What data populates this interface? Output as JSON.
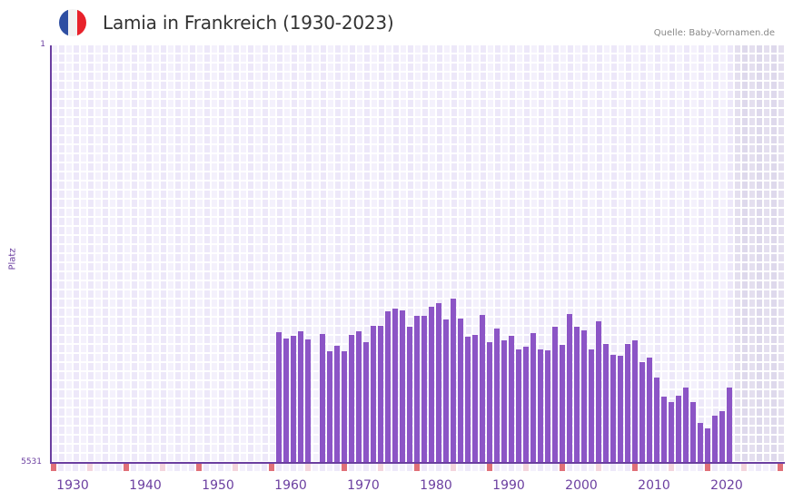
{
  "header": {
    "title": "Lamia in Frankreich (1930-2023)",
    "source": "Quelle: Baby-Vornamen.de",
    "flag_icon": "france-flag-icon",
    "flag_colors": [
      "#2f4fa2",
      "#f2f2f2",
      "#e8222b"
    ]
  },
  "colors": {
    "bar": "#8c55c6",
    "axis": "#6b3fa0",
    "plot_bg": "#f4f1fc",
    "marker_decade": "#e07078",
    "marker_half": "#f4d4dc",
    "marker_normal": "#f4f1fc"
  },
  "axis": {
    "y_top_label": "1",
    "y_bottom_label": "5531",
    "y_title": "Platz",
    "x_labels": [
      "1930",
      "1940",
      "1950",
      "1960",
      "1970",
      "1980",
      "1990",
      "2000",
      "2010",
      "2020"
    ]
  },
  "chart_data": {
    "type": "bar",
    "title": "Lamia in Frankreich (1930-2023)",
    "xlabel": "",
    "ylabel": "Platz",
    "ylim": [
      5531,
      1
    ],
    "y_inverted": true,
    "x_range": [
      1929,
      2029
    ],
    "future_shaded_from": 2023,
    "grid": true,
    "categories": [
      1960,
      1961,
      1962,
      1963,
      1964,
      1965,
      1966,
      1967,
      1968,
      1969,
      1970,
      1971,
      1972,
      1973,
      1974,
      1975,
      1976,
      1977,
      1978,
      1979,
      1980,
      1981,
      1982,
      1983,
      1984,
      1985,
      1986,
      1987,
      1988,
      1989,
      1990,
      1991,
      1992,
      1993,
      1994,
      1995,
      1996,
      1997,
      1998,
      1999,
      2000,
      2001,
      2002,
      2003,
      2004,
      2005,
      2006,
      2007,
      2008,
      2009,
      2010,
      2011,
      2012,
      2013,
      2014,
      2015,
      2016,
      2017,
      2018,
      2019,
      2020,
      2021,
      2022
    ],
    "values": [
      3800,
      3884,
      3848,
      3788,
      3896,
      null,
      3824,
      4052,
      3980,
      4052,
      3836,
      3788,
      3932,
      3716,
      3716,
      3523,
      3487,
      3511,
      3728,
      3583,
      3583,
      3463,
      3415,
      3631,
      3355,
      3619,
      3860,
      3836,
      3571,
      3932,
      3752,
      3908,
      3848,
      4028,
      3992,
      3812,
      4028,
      4040,
      3728,
      3968,
      3559,
      3728,
      3776,
      4028,
      3655,
      3956,
      4100,
      4112,
      3956,
      3908,
      4196,
      4136,
      4401,
      4653,
      4725,
      4641,
      4533,
      4725,
      5002,
      5074,
      4905,
      4845,
      4533
    ]
  }
}
